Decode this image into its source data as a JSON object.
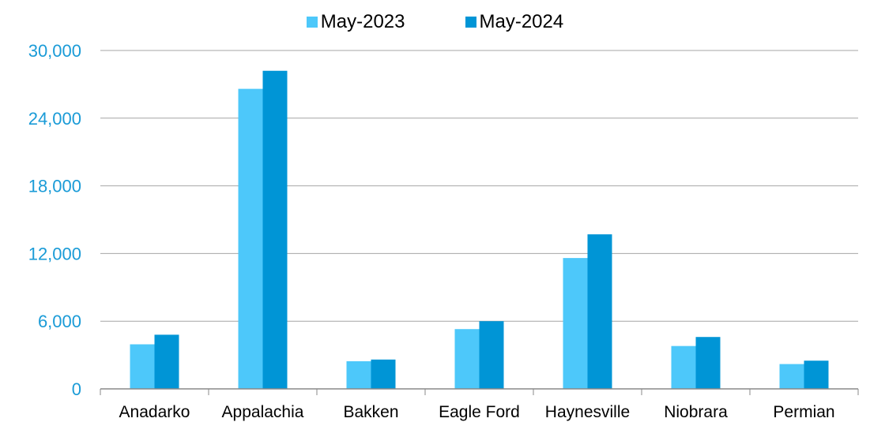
{
  "chart_data": {
    "type": "bar",
    "categories": [
      "Anadarko",
      "Appalachia",
      "Bakken",
      "Eagle Ford",
      "Haynesville",
      "Niobrara",
      "Permian"
    ],
    "series": [
      {
        "name": "May-2023",
        "values": [
          3950,
          26600,
          2450,
          5300,
          11600,
          3800,
          2200
        ],
        "color": "#4DC8FA"
      },
      {
        "name": "May-2024",
        "values": [
          4800,
          28200,
          2600,
          6000,
          13700,
          4600,
          2500
        ],
        "color": "#0095D6"
      }
    ],
    "yticks": [
      "0",
      "6,000",
      "12,000",
      "18,000",
      "24,000",
      "30,000"
    ],
    "ylim": [
      0,
      30000
    ],
    "grid": true,
    "legend_placement": "top-center",
    "tick_label_color": "#1A9BD7",
    "grid_color": "#A6A6A6"
  }
}
